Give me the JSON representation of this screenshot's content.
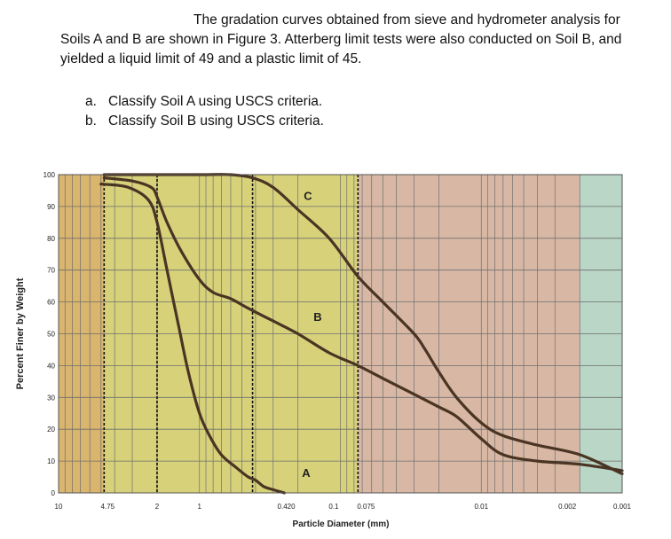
{
  "problem": {
    "intro": "The gradation curves obtained from sieve and hydrometer analysis for Soils A and B are shown in Figure 3. Atterberg limit tests were also conducted on Soil B, and yielded a liquid limit of 49 and a plastic limit of 45.",
    "tasks": [
      {
        "marker": "a.",
        "text": "Classify Soil A using USCS criteria."
      },
      {
        "marker": "b.",
        "text": "Classify Soil B using USCS criteria."
      }
    ]
  },
  "chart_data": {
    "type": "line",
    "xlabel": "Particle Diameter (mm)",
    "ylabel": "Percent Finer by Weight",
    "x_scale": "log",
    "x_reversed": true,
    "xlim": [
      10,
      0.001
    ],
    "ylim": [
      0,
      100
    ],
    "yticks": [
      0,
      10,
      20,
      30,
      40,
      50,
      60,
      70,
      80,
      90,
      100
    ],
    "xtick_labels": [
      {
        "value": 10,
        "label": "10"
      },
      {
        "value": 4.75,
        "label": "4.75"
      },
      {
        "value": 2,
        "label": "2"
      },
      {
        "value": 1,
        "label": "1"
      },
      {
        "value": 0.42,
        "label": "0.420"
      },
      {
        "value": 0.1,
        "label": "0.1"
      },
      {
        "value": 0.075,
        "label": "0.075"
      },
      {
        "value": 0.01,
        "label": "0.01"
      },
      {
        "value": 0.002,
        "label": "0.002"
      },
      {
        "value": 0.001,
        "label": "0.001"
      }
    ],
    "sieve_lines": [
      4.75,
      2,
      0.42,
      0.075
    ],
    "zones": [
      {
        "from": 10,
        "to": 4.75,
        "color": "#d9b56e"
      },
      {
        "from": 4.75,
        "to": 0.075,
        "color": "#d7d27a"
      },
      {
        "from": 0.075,
        "to": 0.002,
        "color": "#d8b8a4"
      },
      {
        "from": 0.002,
        "to": 0.001,
        "color": "#b9d6c6"
      }
    ],
    "grid": true,
    "colors": {
      "curve": "#4a3423",
      "grid": "#6e6e6e"
    },
    "series": [
      {
        "name": "A",
        "label_at": {
          "x": 0.175,
          "y": 5
        },
        "x": [
          5,
          4.75,
          3.2,
          2.3,
          2.0,
          1.7,
          1.4,
          1.2,
          1.0,
          0.85,
          0.7,
          0.55,
          0.45,
          0.4,
          0.35,
          0.3,
          0.25
        ],
        "y": [
          97,
          97,
          96,
          92,
          85,
          70,
          52,
          38,
          25,
          18,
          12,
          8,
          5,
          4,
          2,
          1,
          0
        ]
      },
      {
        "name": "B",
        "label_at": {
          "x": 0.145,
          "y": 54
        },
        "x": [
          4.75,
          3.0,
          2.2,
          2.0,
          1.7,
          1.35,
          1.0,
          0.8,
          0.6,
          0.45,
          0.3,
          0.2,
          0.12,
          0.075,
          0.05,
          0.03,
          0.02,
          0.015,
          0.01,
          0.007,
          0.004,
          0.002,
          0.001
        ],
        "y": [
          99,
          98,
          96,
          93,
          85,
          76,
          67,
          63,
          61,
          58,
          54,
          50,
          44,
          40,
          36,
          31,
          27,
          24,
          17,
          12,
          10,
          9,
          7
        ]
      },
      {
        "name": "C",
        "label_at": {
          "x": 0.17,
          "y": 92
        },
        "x": [
          4.75,
          2.0,
          1.0,
          0.6,
          0.42,
          0.3,
          0.2,
          0.12,
          0.075,
          0.05,
          0.03,
          0.025,
          0.02,
          0.015,
          0.01,
          0.007,
          0.004,
          0.002,
          0.001
        ],
        "y": [
          100,
          100,
          100,
          100,
          99,
          96,
          89,
          80,
          68,
          60,
          50,
          45,
          38,
          30,
          22,
          18,
          15,
          12,
          6
        ]
      }
    ]
  }
}
